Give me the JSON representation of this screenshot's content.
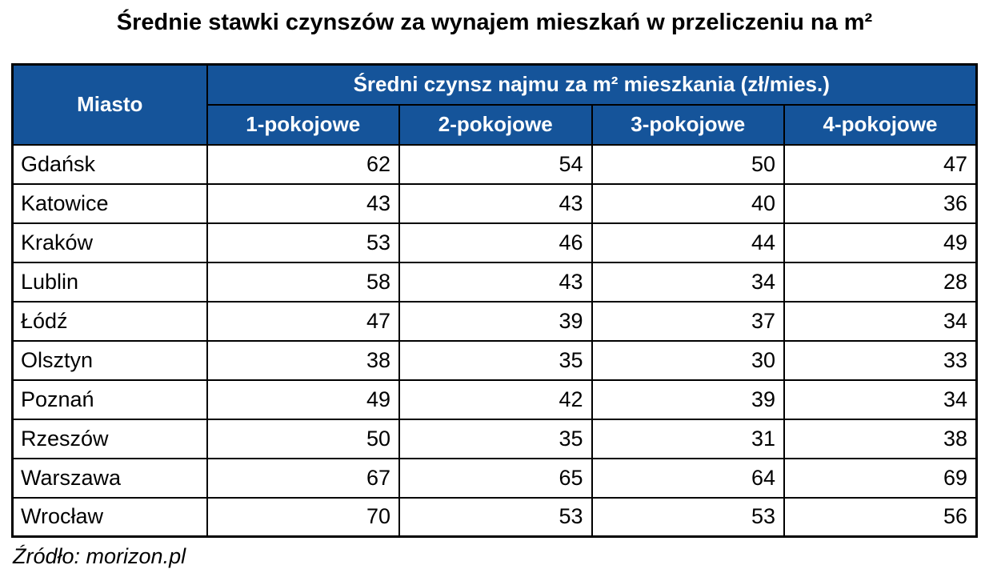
{
  "chart_data": {
    "type": "table",
    "title": "Średnie stawki czynszów za wynajem mieszkań w przeliczeniu na m²",
    "row_header": "Miasto",
    "group_header": "Średni czynsz najmu za m² mieszkania (zł/mies.)",
    "columns": [
      "1-pokojowe",
      "2-pokojowe",
      "3-pokojowe",
      "4-pokojowe"
    ],
    "rows": [
      {
        "city": "Gdańsk",
        "values": [
          62,
          54,
          50,
          47
        ]
      },
      {
        "city": "Katowice",
        "values": [
          43,
          43,
          40,
          36
        ]
      },
      {
        "city": "Kraków",
        "values": [
          53,
          46,
          44,
          49
        ]
      },
      {
        "city": "Lublin",
        "values": [
          58,
          43,
          34,
          28
        ]
      },
      {
        "city": "Łódź",
        "values": [
          47,
          39,
          37,
          34
        ]
      },
      {
        "city": "Olsztyn",
        "values": [
          38,
          35,
          30,
          33
        ]
      },
      {
        "city": "Poznań",
        "values": [
          49,
          42,
          39,
          34
        ]
      },
      {
        "city": "Rzeszów",
        "values": [
          50,
          35,
          31,
          38
        ]
      },
      {
        "city": "Warszawa",
        "values": [
          67,
          65,
          64,
          69
        ]
      },
      {
        "city": "Wrocław",
        "values": [
          70,
          53,
          53,
          56
        ]
      }
    ],
    "source": "Źródło: morizon.pl",
    "colors": {
      "header_bg": "#15549a",
      "header_text": "#ffffff",
      "border": "#000000",
      "body_bg": "#ffffff"
    }
  }
}
